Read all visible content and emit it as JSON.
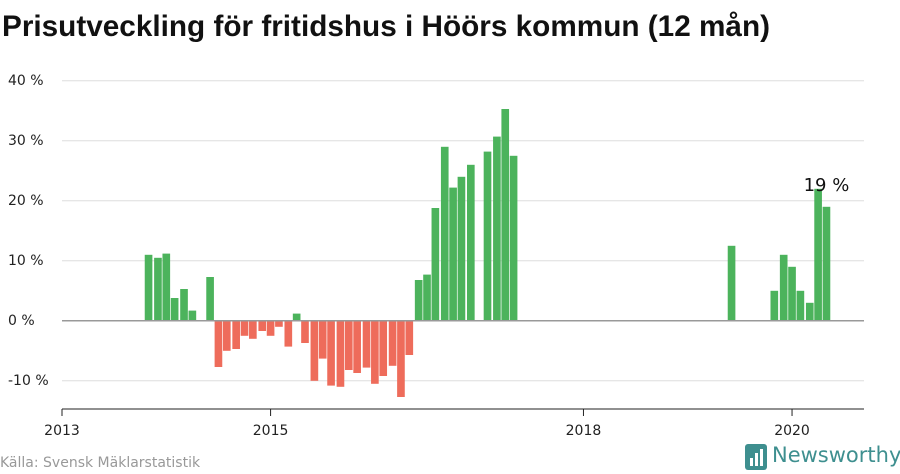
{
  "chart_data": {
    "type": "bar",
    "title": "Prisutveckling för fritidshus i Höörs kommun (12 mån)",
    "source": "Källa: Svensk Mäklarstatistik",
    "brand": "Newsworthy",
    "x": [
      2013.83,
      2013.92,
      2014.0,
      2014.08,
      2014.17,
      2014.25,
      2014.42,
      2014.5,
      2014.58,
      2014.67,
      2014.75,
      2014.83,
      2014.92,
      2015.0,
      2015.08,
      2015.17,
      2015.25,
      2015.33,
      2015.42,
      2015.5,
      2015.58,
      2015.67,
      2015.75,
      2015.83,
      2015.92,
      2016.0,
      2016.08,
      2016.17,
      2016.25,
      2016.33,
      2016.42,
      2016.5,
      2016.58,
      2016.67,
      2016.75,
      2016.83,
      2016.92,
      2017.08,
      2017.17,
      2017.25,
      2017.33,
      2019.42,
      2019.83,
      2019.92,
      2020.0,
      2020.08,
      2020.17,
      2020.25,
      2020.33
    ],
    "values": [
      11,
      10.5,
      11.2,
      3.8,
      5.3,
      1.7,
      7.3,
      -7.7,
      -5,
      -4.7,
      -2.5,
      -3,
      -1.7,
      -2.5,
      -1,
      -4.3,
      1.2,
      -3.7,
      -10,
      -6.3,
      -10.8,
      -11,
      -8.2,
      -8.7,
      -7.8,
      -10.5,
      -9.2,
      -7.5,
      -12.7,
      -5.7,
      6.8,
      7.7,
      18.8,
      29,
      22.2,
      24,
      26,
      28.2,
      30.7,
      35.3,
      27.5,
      12.5,
      5,
      11,
      9,
      5,
      3,
      22,
      19
    ],
    "value_labels": [
      null,
      null,
      null,
      null,
      null,
      null,
      null,
      null,
      null,
      null,
      null,
      null,
      null,
      null,
      null,
      null,
      null,
      null,
      null,
      null,
      null,
      null,
      null,
      null,
      null,
      null,
      null,
      null,
      null,
      null,
      null,
      null,
      null,
      null,
      null,
      null,
      null,
      null,
      null,
      null,
      null,
      null,
      null,
      null,
      null,
      null,
      null,
      null,
      "19 %"
    ],
    "positive_color": "#4cb35c",
    "negative_color": "#ee6c5b",
    "xlim": [
      2013,
      2020.69
    ],
    "xticks": [
      2013,
      2015,
      2018,
      2020
    ],
    "ylim": [
      -14.7,
      41.8
    ],
    "yticks": [
      {
        "value": -10,
        "label": "-10 %"
      },
      {
        "value": 0,
        "label": "0 %"
      },
      {
        "value": 10,
        "label": "10 %"
      },
      {
        "value": 20,
        "label": "20 %"
      },
      {
        "value": 30,
        "label": "30 %"
      },
      {
        "value": 40,
        "label": "40 %"
      }
    ],
    "grid": true
  }
}
